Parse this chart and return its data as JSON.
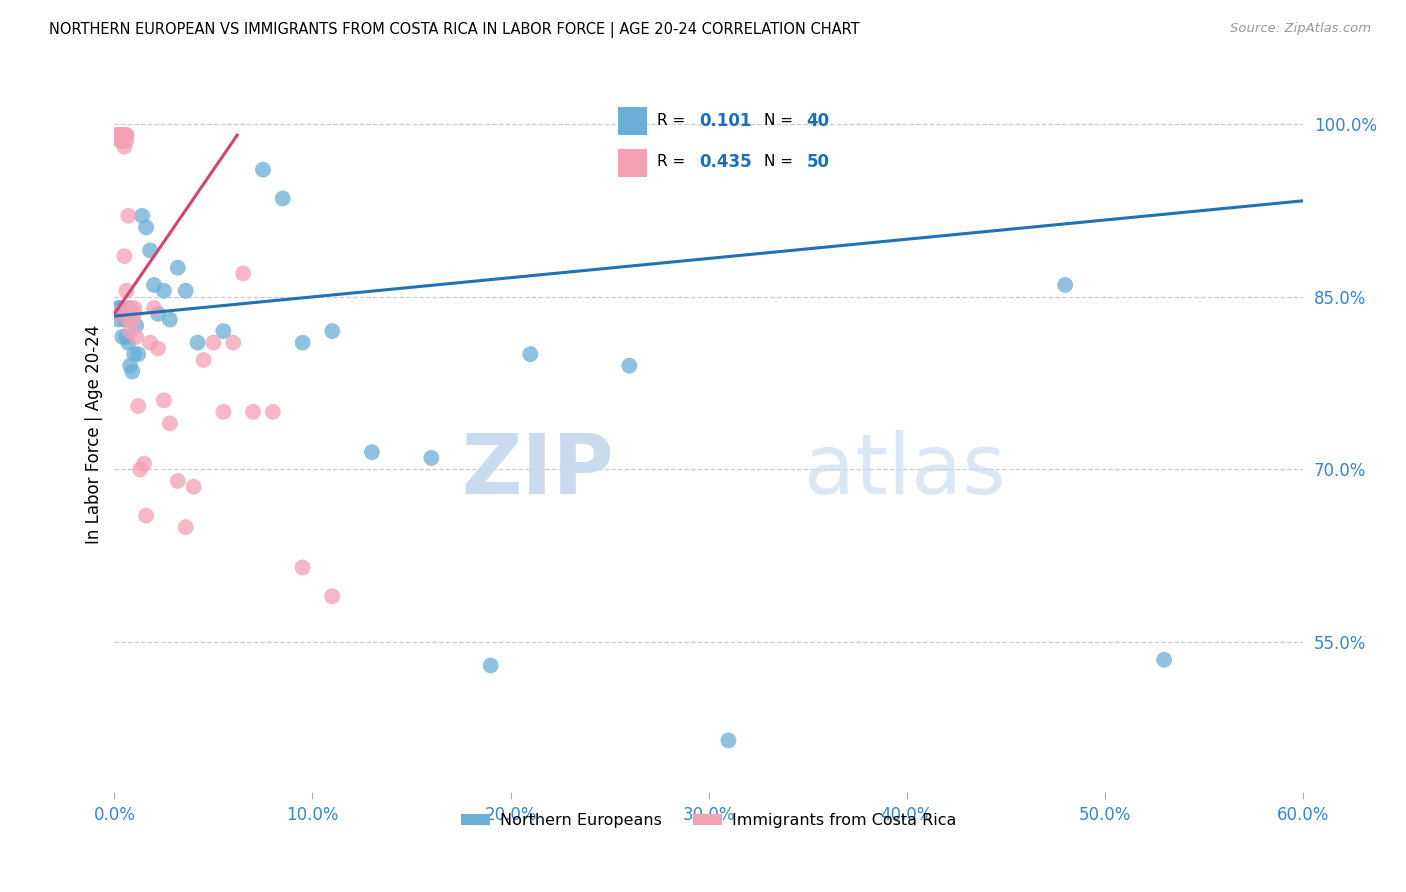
{
  "title": "NORTHERN EUROPEAN VS IMMIGRANTS FROM COSTA RICA IN LABOR FORCE | AGE 20-24 CORRELATION CHART",
  "source": "Source: ZipAtlas.com",
  "ylabel_label": "In Labor Force | Age 20-24",
  "xlim": [
    0.0,
    0.6
  ],
  "ylim": [
    0.42,
    1.04
  ],
  "ytick_vals": [
    0.55,
    0.7,
    0.85,
    1.0
  ],
  "ytick_labels": [
    "55.0%",
    "70.0%",
    "85.0%",
    "100.0%"
  ],
  "xtick_vals": [
    0.0,
    0.1,
    0.2,
    0.3,
    0.4,
    0.5,
    0.6
  ],
  "xtick_labels": [
    "0.0%",
    "10.0%",
    "20.0%",
    "30.0%",
    "40.0%",
    "50.0%",
    "60.0%"
  ],
  "blue_R": 0.101,
  "blue_N": 40,
  "pink_R": 0.435,
  "pink_N": 50,
  "blue_color": "#6baed6",
  "pink_color": "#f4a0b5",
  "blue_line_color": "#2171b5",
  "pink_line_color": "#d44470",
  "legend_color": "#1a6fba",
  "blue_x": [
    0.001,
    0.002,
    0.002,
    0.003,
    0.003,
    0.004,
    0.004,
    0.005,
    0.005,
    0.006,
    0.006,
    0.007,
    0.008,
    0.009,
    0.01,
    0.011,
    0.012,
    0.014,
    0.016,
    0.018,
    0.02,
    0.022,
    0.025,
    0.028,
    0.032,
    0.036,
    0.042,
    0.055,
    0.075,
    0.085,
    0.095,
    0.11,
    0.13,
    0.16,
    0.19,
    0.21,
    0.26,
    0.31,
    0.48,
    0.53
  ],
  "blue_y": [
    0.835,
    0.84,
    0.83,
    0.84,
    0.835,
    0.815,
    0.835,
    0.84,
    0.83,
    0.815,
    0.835,
    0.81,
    0.79,
    0.785,
    0.8,
    0.825,
    0.8,
    0.92,
    0.91,
    0.89,
    0.86,
    0.835,
    0.855,
    0.83,
    0.875,
    0.855,
    0.81,
    0.82,
    0.96,
    0.935,
    0.81,
    0.82,
    0.715,
    0.71,
    0.53,
    0.8,
    0.79,
    0.465,
    0.86,
    0.535
  ],
  "pink_x": [
    0.001,
    0.001,
    0.002,
    0.002,
    0.002,
    0.003,
    0.003,
    0.003,
    0.003,
    0.004,
    0.004,
    0.004,
    0.004,
    0.005,
    0.005,
    0.005,
    0.006,
    0.006,
    0.006,
    0.006,
    0.007,
    0.007,
    0.007,
    0.008,
    0.008,
    0.009,
    0.01,
    0.01,
    0.011,
    0.012,
    0.013,
    0.015,
    0.016,
    0.018,
    0.02,
    0.022,
    0.025,
    0.028,
    0.032,
    0.036,
    0.04,
    0.045,
    0.05,
    0.055,
    0.06,
    0.065,
    0.07,
    0.08,
    0.095,
    0.11
  ],
  "pink_y": [
    0.835,
    0.99,
    0.99,
    0.99,
    0.99,
    0.99,
    0.99,
    0.99,
    0.985,
    0.99,
    0.99,
    0.99,
    0.985,
    0.99,
    0.98,
    0.885,
    0.99,
    0.99,
    0.985,
    0.855,
    0.92,
    0.84,
    0.83,
    0.84,
    0.82,
    0.83,
    0.84,
    0.835,
    0.815,
    0.755,
    0.7,
    0.705,
    0.66,
    0.81,
    0.84,
    0.805,
    0.76,
    0.74,
    0.69,
    0.65,
    0.685,
    0.795,
    0.81,
    0.75,
    0.81,
    0.87,
    0.75,
    0.75,
    0.615,
    0.59
  ],
  "blue_line_x": [
    0.0,
    0.6
  ],
  "blue_line_y": [
    0.833,
    0.933
  ],
  "pink_line_x": [
    0.0,
    0.062
  ],
  "pink_line_y": [
    0.835,
    0.99
  ]
}
